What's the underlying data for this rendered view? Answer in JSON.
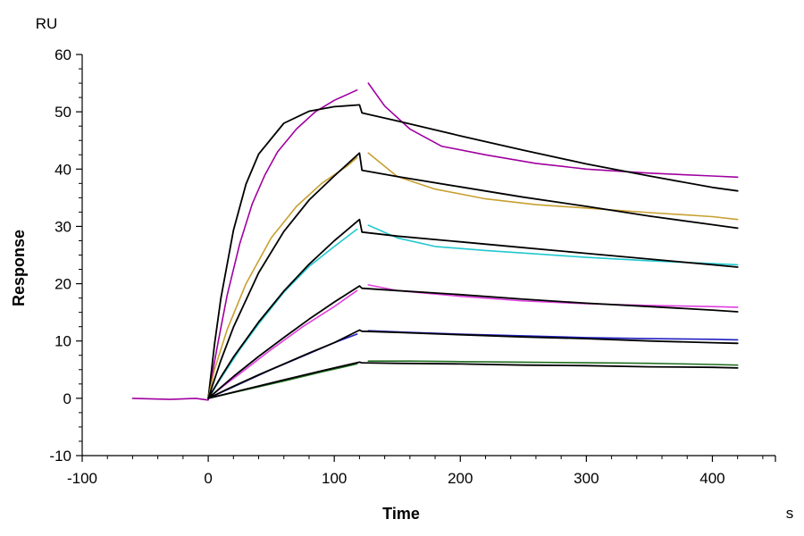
{
  "chart_data": {
    "type": "line",
    "title": "",
    "xlabel": "Time",
    "ylabel": "Response",
    "x_unit": "s",
    "y_unit": "RU",
    "xlim": [
      -100,
      450
    ],
    "ylim": [
      -10,
      60
    ],
    "x_ticks": [
      -100,
      0,
      100,
      200,
      300,
      400
    ],
    "y_ticks": [
      -10,
      0,
      10,
      20,
      30,
      40,
      50,
      60
    ],
    "grid": false,
    "legend": "none",
    "series": [
      {
        "color": "#a000a0",
        "role": "measured",
        "segments": [
          [
            [
              -60,
              0
            ],
            [
              -30,
              -0.2
            ],
            [
              -10,
              0
            ],
            [
              0,
              -0.3
            ],
            [
              3,
              4
            ],
            [
              8,
              10
            ],
            [
              15,
              18
            ],
            [
              25,
              27
            ],
            [
              35,
              34
            ],
            [
              45,
              39
            ],
            [
              55,
              43
            ],
            [
              70,
              47
            ],
            [
              85,
              50
            ],
            [
              100,
              52
            ],
            [
              118,
              53.8
            ]
          ],
          [
            [
              127,
              55
            ],
            [
              140,
              51
            ],
            [
              160,
              47
            ],
            [
              185,
              44
            ],
            [
              220,
              42.5
            ],
            [
              260,
              41
            ],
            [
              300,
              40
            ],
            [
              350,
              39.3
            ],
            [
              400,
              38.8
            ],
            [
              420,
              38.6
            ]
          ]
        ]
      },
      {
        "color": "#000000",
        "role": "fit",
        "segments": [
          [
            [
              0,
              0
            ],
            [
              5,
              9.4
            ],
            [
              10,
              17.4
            ],
            [
              20,
              29.3
            ],
            [
              30,
              37.4
            ],
            [
              40,
              42.6
            ],
            [
              60,
              48.0
            ],
            [
              80,
              50.1
            ],
            [
              100,
              50.9
            ],
            [
              120,
              51.2
            ],
            [
              122,
              49.8
            ],
            [
              150,
              48.4
            ],
            [
              200,
              45.8
            ],
            [
              250,
              43.3
            ],
            [
              300,
              40.9
            ],
            [
              350,
              38.8
            ],
            [
              400,
              36.8
            ],
            [
              420,
              36.2
            ]
          ]
        ]
      },
      {
        "color": "#c8a030",
        "role": "measured",
        "segments": [
          [
            [
              0,
              0
            ],
            [
              5,
              5
            ],
            [
              15,
              12
            ],
            [
              30,
              20
            ],
            [
              50,
              28
            ],
            [
              70,
              33.5
            ],
            [
              90,
              37.5
            ],
            [
              110,
              40.5
            ],
            [
              118,
              42
            ]
          ],
          [
            [
              127,
              42.8
            ],
            [
              150,
              38.7
            ],
            [
              180,
              36.5
            ],
            [
              220,
              34.8
            ],
            [
              260,
              33.8
            ],
            [
              300,
              33.2
            ],
            [
              350,
              32.4
            ],
            [
              400,
              31.7
            ],
            [
              420,
              31.2
            ]
          ]
        ]
      },
      {
        "color": "#000000",
        "role": "fit",
        "segments": [
          [
            [
              0,
              0
            ],
            [
              10,
              6.6
            ],
            [
              20,
              12.4
            ],
            [
              40,
              21.9
            ],
            [
              60,
              29.1
            ],
            [
              80,
              34.6
            ],
            [
              100,
              38.8
            ],
            [
              120,
              42.8
            ],
            [
              122,
              39.8
            ],
            [
              150,
              38.7
            ],
            [
              200,
              36.9
            ],
            [
              250,
              35.1
            ],
            [
              300,
              33.5
            ],
            [
              350,
              31.8
            ],
            [
              400,
              30.3
            ],
            [
              420,
              29.7
            ]
          ]
        ]
      },
      {
        "color": "#20c8d0",
        "role": "measured",
        "segments": [
          [
            [
              0,
              0
            ],
            [
              10,
              3.5
            ],
            [
              25,
              8.5
            ],
            [
              40,
              13
            ],
            [
              60,
              18.5
            ],
            [
              80,
              23
            ],
            [
              100,
              26.5
            ],
            [
              118,
              29.5
            ]
          ],
          [
            [
              127,
              30.2
            ],
            [
              150,
              28
            ],
            [
              180,
              26.5
            ],
            [
              220,
              25.8
            ],
            [
              260,
              25.2
            ],
            [
              300,
              24.6
            ],
            [
              350,
              24
            ],
            [
              400,
              23.5
            ],
            [
              420,
              23.3
            ]
          ]
        ]
      },
      {
        "color": "#000000",
        "role": "fit",
        "segments": [
          [
            [
              0,
              0
            ],
            [
              10,
              3.7
            ],
            [
              20,
              7.2
            ],
            [
              40,
              13.3
            ],
            [
              60,
              18.7
            ],
            [
              80,
              23.4
            ],
            [
              100,
              27.5
            ],
            [
              120,
              31.2
            ],
            [
              122,
              29.0
            ],
            [
              150,
              28.3
            ],
            [
              200,
              27.3
            ],
            [
              250,
              26.3
            ],
            [
              300,
              25.3
            ],
            [
              350,
              24.3
            ],
            [
              400,
              23.3
            ],
            [
              420,
              22.9
            ]
          ]
        ]
      },
      {
        "color": "#e040e0",
        "role": "measured",
        "segments": [
          [
            [
              0,
              0
            ],
            [
              10,
              1.8
            ],
            [
              25,
              4.3
            ],
            [
              50,
              8.5
            ],
            [
              75,
              12.5
            ],
            [
              100,
              16
            ],
            [
              118,
              18.8
            ]
          ],
          [
            [
              127,
              19.8
            ],
            [
              150,
              18.8
            ],
            [
              200,
              17.8
            ],
            [
              250,
              17
            ],
            [
              300,
              16.5
            ],
            [
              350,
              16.2
            ],
            [
              400,
              16
            ],
            [
              420,
              15.9
            ]
          ]
        ]
      },
      {
        "color": "#000000",
        "role": "fit",
        "segments": [
          [
            [
              0,
              0
            ],
            [
              10,
              1.9
            ],
            [
              20,
              3.8
            ],
            [
              40,
              7.3
            ],
            [
              60,
              10.6
            ],
            [
              80,
              13.8
            ],
            [
              100,
              16.8
            ],
            [
              120,
              19.6
            ],
            [
              122,
              19.2
            ],
            [
              150,
              18.8
            ],
            [
              200,
              18.1
            ],
            [
              250,
              17.3
            ],
            [
              300,
              16.6
            ],
            [
              350,
              16.0
            ],
            [
              400,
              15.4
            ],
            [
              420,
              15.1
            ]
          ]
        ]
      },
      {
        "color": "#2020c0",
        "role": "measured",
        "segments": [
          [
            [
              0,
              0
            ],
            [
              20,
              2
            ],
            [
              50,
              5
            ],
            [
              80,
              7.8
            ],
            [
              100,
              9.7
            ],
            [
              118,
              11.2
            ]
          ],
          [
            [
              127,
              11.8
            ],
            [
              160,
              11.5
            ],
            [
              200,
              11.2
            ],
            [
              250,
              10.9
            ],
            [
              300,
              10.6
            ],
            [
              350,
              10.4
            ],
            [
              400,
              10.3
            ],
            [
              420,
              10.2
            ]
          ]
        ]
      },
      {
        "color": "#000000",
        "role": "fit",
        "segments": [
          [
            [
              0,
              0
            ],
            [
              20,
              2.1
            ],
            [
              40,
              4.1
            ],
            [
              60,
              6.0
            ],
            [
              80,
              7.9
            ],
            [
              100,
              9.7
            ],
            [
              120,
              11.9
            ],
            [
              122,
              11.7
            ],
            [
              150,
              11.5
            ],
            [
              200,
              11.1
            ],
            [
              250,
              10.7
            ],
            [
              300,
              10.4
            ],
            [
              350,
              10.0
            ],
            [
              400,
              9.7
            ],
            [
              420,
              9.6
            ]
          ]
        ]
      },
      {
        "color": "#207020",
        "role": "measured",
        "segments": [
          [
            [
              0,
              0
            ],
            [
              30,
              1.5
            ],
            [
              60,
              3
            ],
            [
              90,
              4.6
            ],
            [
              118,
              6
            ]
          ],
          [
            [
              127,
              6.5
            ],
            [
              160,
              6.5
            ],
            [
              200,
              6.4
            ],
            [
              250,
              6.3
            ],
            [
              300,
              6.2
            ],
            [
              350,
              6.1
            ],
            [
              400,
              5.9
            ],
            [
              420,
              5.8
            ]
          ]
        ]
      },
      {
        "color": "#000000",
        "role": "fit",
        "segments": [
          [
            [
              0,
              0
            ],
            [
              30,
              1.6
            ],
            [
              60,
              3.2
            ],
            [
              90,
              4.8
            ],
            [
              120,
              6.3
            ],
            [
              122,
              6.2
            ],
            [
              150,
              6.1
            ],
            [
              200,
              6.0
            ],
            [
              250,
              5.8
            ],
            [
              300,
              5.7
            ],
            [
              350,
              5.5
            ],
            [
              400,
              5.4
            ],
            [
              420,
              5.3
            ]
          ]
        ]
      }
    ]
  }
}
